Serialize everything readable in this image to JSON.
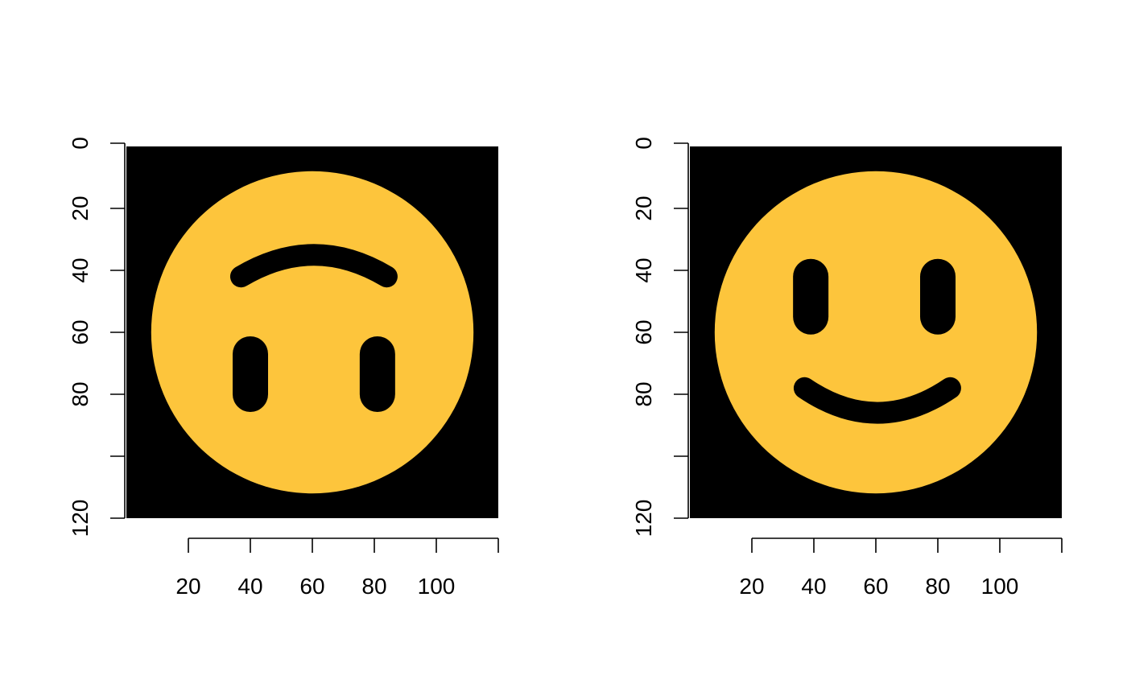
{
  "colors": {
    "background": "#000000",
    "face": "#fdc53c",
    "features": "#000000",
    "axis": "#000000"
  },
  "chart_data": [
    {
      "type": "image",
      "image": "upside-down smiling face emoji on black background",
      "xlim": [
        0,
        120
      ],
      "ylim": [
        0,
        120
      ],
      "y_reversed": true,
      "x_ticks": [
        20,
        40,
        60,
        80,
        100,
        120
      ],
      "x_tick_labels": [
        "20",
        "40",
        "60",
        "80",
        "100",
        ""
      ],
      "y_ticks": [
        0,
        20,
        40,
        60,
        80,
        100,
        120
      ],
      "y_tick_labels": [
        "0",
        "20",
        "40",
        "60",
        "80",
        "",
        "120"
      ],
      "face": {
        "center": [
          60,
          60
        ],
        "radius": 52,
        "eyes": [
          {
            "x": 40,
            "y1": 67,
            "y2": 80
          },
          {
            "x": 81,
            "y1": 67,
            "y2": 80
          }
        ],
        "mouth": {
          "x1": 37,
          "x2": 84,
          "y_ends": 42,
          "y_mid": 35,
          "orientation": "frown"
        }
      }
    },
    {
      "type": "image",
      "image": "smiling face emoji on black background",
      "xlim": [
        0,
        120
      ],
      "ylim": [
        0,
        120
      ],
      "y_reversed": true,
      "x_ticks": [
        20,
        40,
        60,
        80,
        100,
        120
      ],
      "x_tick_labels": [
        "20",
        "40",
        "60",
        "80",
        "100",
        ""
      ],
      "y_ticks": [
        0,
        20,
        40,
        60,
        80,
        100,
        120
      ],
      "y_tick_labels": [
        "0",
        "20",
        "40",
        "60",
        "80",
        "",
        "120"
      ],
      "face": {
        "center": [
          60,
          60
        ],
        "radius": 52,
        "eyes": [
          {
            "x": 39,
            "y1": 42,
            "y2": 55
          },
          {
            "x": 80,
            "y1": 42,
            "y2": 55
          }
        ],
        "mouth": {
          "x1": 37,
          "x2": 84,
          "y_ends": 78,
          "y_mid": 86,
          "orientation": "smile"
        }
      }
    }
  ]
}
